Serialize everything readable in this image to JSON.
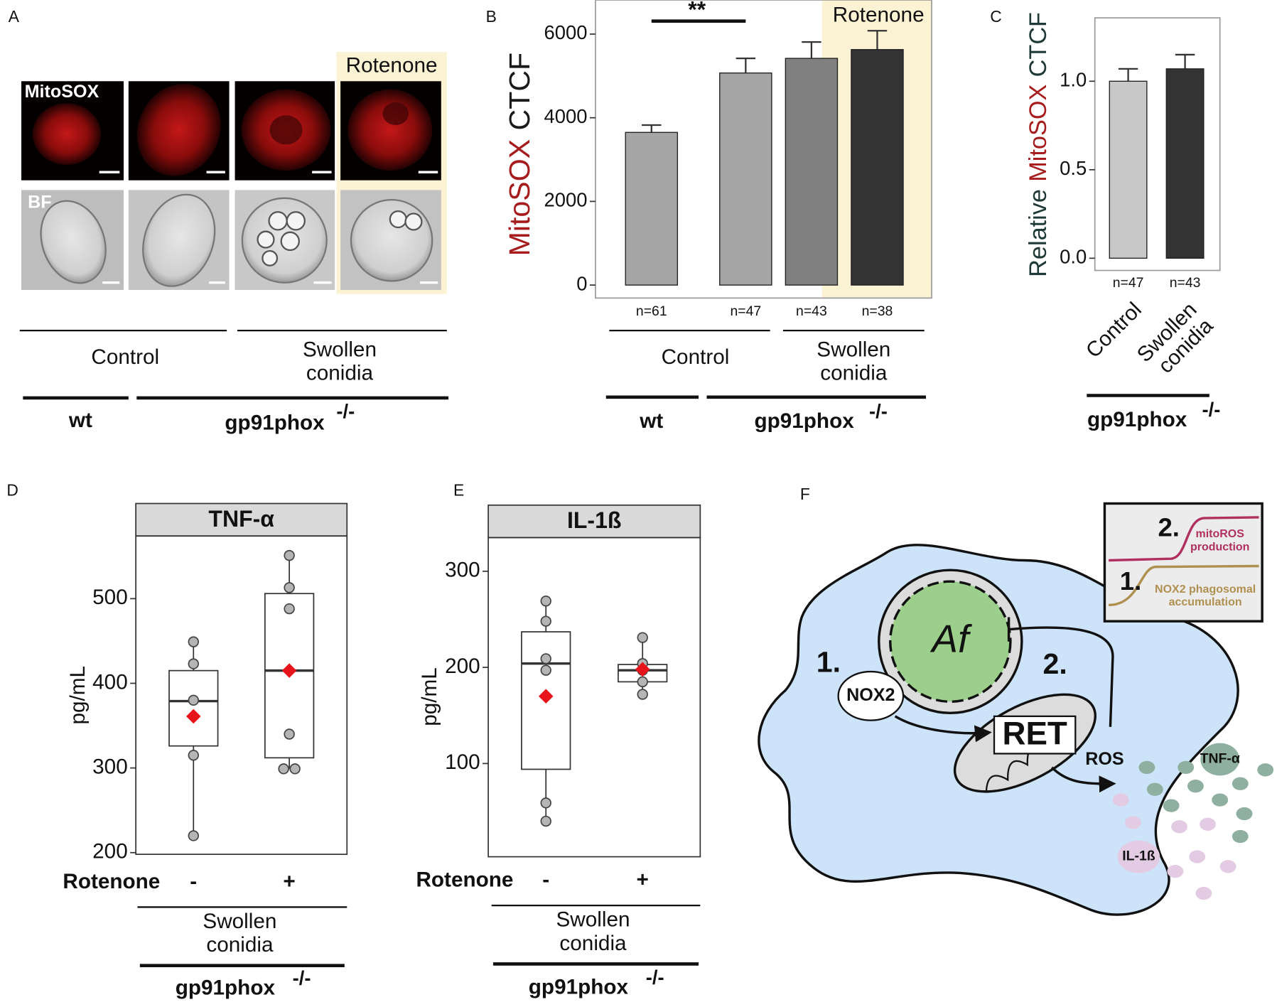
{
  "panel_labels": [
    "A",
    "B",
    "C",
    "D",
    "E",
    "F"
  ],
  "panel_a": {
    "rows": [
      "MitoSOX",
      "BF"
    ],
    "highlight": "Rotenone",
    "groups": [
      [
        "Control"
      ],
      [
        "Swollen",
        "conidia"
      ]
    ],
    "strains": [
      "wt",
      "gp91phox"
    ],
    "genotype": "-/-"
  },
  "chart_data": [
    {
      "type": "bar",
      "ylabel_parts": [
        "MitoSOX",
        "CTCF"
      ],
      "ylabel_colors": [
        "#a61c1c",
        "#1a1a1a"
      ],
      "categories": [
        "n=61",
        "n=47",
        "n=43",
        "n=38"
      ],
      "values": [
        3650,
        5070,
        5420,
        5630
      ],
      "errors": [
        175,
        350,
        390,
        450
      ],
      "colors": [
        "#a6a6a6",
        "#a6a6a6",
        "#808080",
        "#333333"
      ],
      "ylim": [
        -310,
        6815
      ],
      "yticks": [
        0,
        2000,
        4000,
        6000
      ],
      "annotation": "**",
      "highlight": "Rotenone",
      "groups": [
        [
          "Control"
        ],
        [
          "Swollen",
          "conidia"
        ]
      ],
      "strains": [
        "wt",
        "gp91phox"
      ],
      "genotype": "-/-"
    },
    {
      "type": "bar",
      "ylabel_parts": [
        "Relative",
        "MitoSOX",
        "CTCF"
      ],
      "ylabel_colors": [
        "#1f3a36",
        "#a61c1c",
        "#1f3a36"
      ],
      "categories": [
        "n=47",
        "n=43"
      ],
      "values": [
        1.0,
        1.07
      ],
      "errors": [
        0.07,
        0.08
      ],
      "colors": [
        "#c8c8c8",
        "#333333"
      ],
      "ylim": [
        -0.069,
        1.358
      ],
      "yticks": [
        {
          "value": 0,
          "label": "0.0"
        },
        {
          "value": 0.5,
          "label": "0.5"
        },
        {
          "value": 1,
          "label": "1.0"
        }
      ],
      "groups": [
        [
          "Control"
        ],
        [
          "Swollen",
          "conidia"
        ]
      ],
      "strains": [
        "gp91phox"
      ],
      "genotype": "-/-"
    },
    {
      "type": "box",
      "title": "TNF-α",
      "ylabel": "pg/mL",
      "xlabel": "Rotenone",
      "categories": [
        "-",
        "+"
      ],
      "boxes": [
        {
          "whislo": 220,
          "q1": 326,
          "med": 379,
          "q3": 415,
          "whishi": 449,
          "mean": 361,
          "points": [
            449,
            423,
            380,
            315,
            220
          ]
        },
        {
          "whislo": 299,
          "q1": 312,
          "med": 415,
          "q3": 506,
          "whishi": 551,
          "mean": 415,
          "points": [
            551,
            513,
            488,
            340,
            299,
            299
          ]
        }
      ],
      "ylim": [
        198,
        574
      ],
      "yticks": [
        200,
        300,
        400,
        500
      ],
      "mean_color": "#e8141b",
      "groups": [
        [
          "Swollen",
          "conidia"
        ]
      ],
      "strains": [
        "gp91phox"
      ],
      "genotype": "-/-"
    },
    {
      "type": "box",
      "title": "IL-1ß",
      "ylabel": "pg/mL",
      "xlabel": "Rotenone",
      "categories": [
        "-",
        "+"
      ],
      "boxes": [
        {
          "whislo": 40,
          "q1": 94,
          "med": 204,
          "q3": 237,
          "whishi": 269,
          "mean": 170,
          "points": [
            269,
            248,
            209,
            197,
            59,
            40
          ]
        },
        {
          "whislo": 171,
          "q1": 185,
          "med": 197,
          "q3": 203,
          "whishi": 231,
          "mean": 198,
          "points": [
            231,
            204,
            197,
            185,
            172
          ]
        }
      ],
      "ylim": [
        3,
        335
      ],
      "yticks": [
        100,
        200,
        300
      ],
      "mean_color": "#e8141b",
      "groups": [
        [
          "Swollen",
          "conidia"
        ]
      ],
      "strains": [
        "gp91phox"
      ],
      "genotype": "-/-"
    }
  ],
  "panel_f": {
    "step1": "1.",
    "step2": "2.",
    "nox2": "NOX2",
    "af": "Af",
    "ret": "RET",
    "ros": "ROS",
    "tnf": "TNF-α",
    "il1b": "IL-1ß",
    "inset": {
      "step2": "2.",
      "mito": [
        "mitoROS",
        "production"
      ],
      "step1": "1.",
      "nox": [
        "NOX2 phagosomal",
        "accumulation"
      ]
    }
  }
}
